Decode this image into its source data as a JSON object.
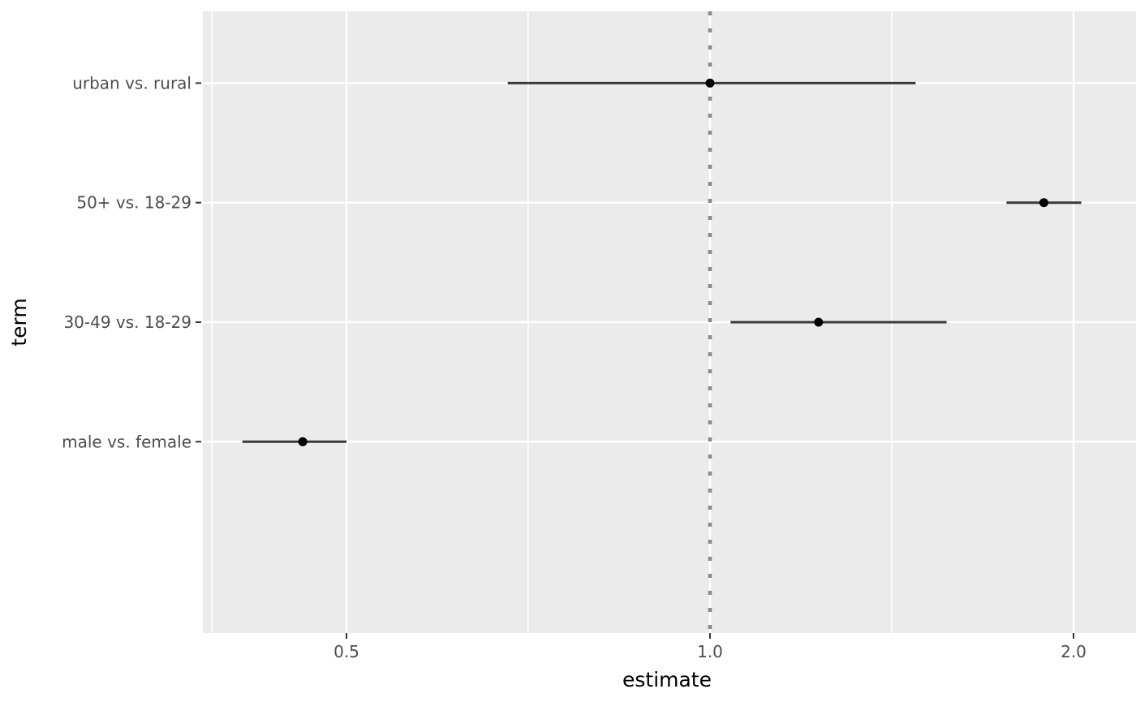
{
  "figure": {
    "background_color": "#FFFFFF",
    "panel_background_color": "#EBEBEB",
    "grid_color": "#FFFFFF",
    "point_color": "#000000",
    "range_line_color": "#3A3A3A",
    "tick_mark_color": "#333333",
    "tick_label_color": "#4D4D4D",
    "reference_line_color": "#8A8A8A"
  },
  "chart_data": {
    "type": "scatter",
    "subtype": "pointrange-forest-plot",
    "title": "",
    "xlabel": "estimate",
    "ylabel": "term",
    "x_scale": "log",
    "x_ticks": [
      0.5,
      1.0,
      2.0
    ],
    "x_tick_labels": [
      "0.5",
      "1.0",
      "2.0"
    ],
    "x_minor_breaks": [
      0.387,
      0.707,
      1.414
    ],
    "grid": true,
    "legend": "none",
    "reference_line": {
      "x": 1.0,
      "linetype": "dotted"
    },
    "categories": [
      "urban vs. rural",
      "50+ vs. 18-29",
      "30-49 vs. 18-29",
      "male vs. female"
    ],
    "points": [
      {
        "term": "urban vs. rural",
        "estimate": 1.0,
        "conf_low": 0.68,
        "conf_high": 1.48
      },
      {
        "term": "50+ vs. 18-29",
        "estimate": 1.89,
        "conf_low": 1.76,
        "conf_high": 2.03
      },
      {
        "term": "30-49 vs. 18-29",
        "estimate": 1.23,
        "conf_low": 1.04,
        "conf_high": 1.57
      },
      {
        "term": "male vs. female",
        "estimate": 0.46,
        "conf_low": 0.41,
        "conf_high": 0.5
      }
    ]
  }
}
